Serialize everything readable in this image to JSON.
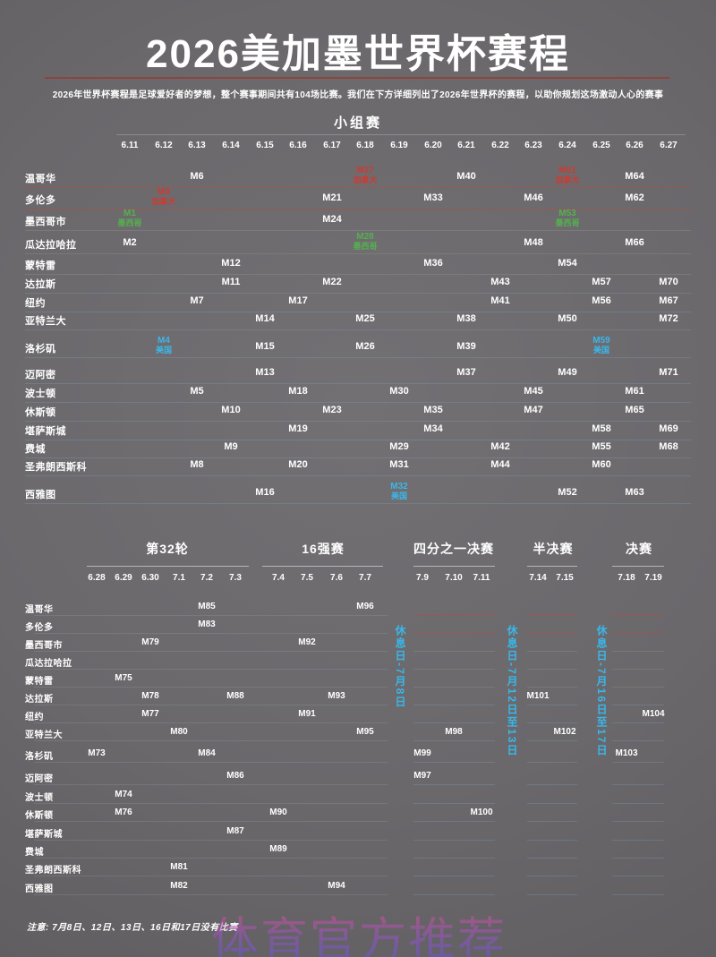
{
  "title": "2026美加墨世界杯赛程",
  "subtitle": "2026年世界杯赛程是足球爱好者的梦想，整个赛事期间共有104场比赛。我们在下方详细列出了2026年世界杯的赛程，以助你规划这场激动人心的赛事",
  "note": "注意: 7月8日、12日、13日、16日和17日没有比赛",
  "watermark": "体育官方推荐",
  "colors": {
    "canada": "#cf3a31",
    "mexico": "#55b04e",
    "usa": "#3ab7ea",
    "title_underline": "#8a453c",
    "rest_day_text": "#3ab7ea",
    "separator_CA": "rgba(195,70,58,0.45)",
    "separator_MX": "rgba(150,170,145,0.28)",
    "separator_US": "rgba(130,170,200,0.28)",
    "ko_left_line": "rgba(175,205,225,0.16)"
  },
  "group_stage": {
    "header": "小组赛",
    "dates": [
      "6.11",
      "6.12",
      "6.13",
      "6.14",
      "6.15",
      "6.16",
      "6.17",
      "6.18",
      "6.19",
      "6.20",
      "6.21",
      "6.22",
      "6.23",
      "6.24",
      "6.25",
      "6.26",
      "6.27"
    ],
    "rows": [
      {
        "city": "温哥华",
        "country": "CA",
        "matches": [
          {
            "m": "M6",
            "date": "6.13"
          },
          {
            "m": "M27",
            "sub": "加拿大",
            "c": "canada",
            "date": "6.18"
          },
          {
            "m": "M40",
            "date": "6.21"
          },
          {
            "m": "M51",
            "sub": "加拿大",
            "c": "canada",
            "date": "6.24"
          },
          {
            "m": "M64",
            "date": "6.26"
          }
        ]
      },
      {
        "city": "多伦多",
        "country": "CA",
        "matches": [
          {
            "m": "M3",
            "sub": "加拿大",
            "c": "canada",
            "date": "6.12"
          },
          {
            "m": "M21",
            "date": "6.17"
          },
          {
            "m": "M33",
            "date": "6.20"
          },
          {
            "m": "M46",
            "date": "6.23"
          },
          {
            "m": "M62",
            "date": "6.26"
          }
        ]
      },
      {
        "city": "墨西哥市",
        "country": "MX",
        "matches": [
          {
            "m": "M1",
            "sub": "墨西哥",
            "c": "mexico",
            "date": "6.11"
          },
          {
            "m": "M24",
            "date": "6.17"
          },
          {
            "m": "M53",
            "sub": "墨西哥",
            "c": "mexico",
            "date": "6.24"
          }
        ]
      },
      {
        "city": "瓜达拉哈拉",
        "country": "MX",
        "matches": [
          {
            "m": "M2",
            "date": "6.11"
          },
          {
            "m": "M28",
            "sub": "墨西哥",
            "c": "mexico",
            "date": "6.18"
          },
          {
            "m": "M48",
            "date": "6.23"
          },
          {
            "m": "M66",
            "date": "6.26"
          }
        ]
      },
      {
        "city": "蒙特雷",
        "country": "MX",
        "matches": [
          {
            "m": "M12",
            "date": "6.14"
          },
          {
            "m": "M36",
            "date": "6.20"
          },
          {
            "m": "M54",
            "date": "6.24"
          }
        ]
      },
      {
        "city": "达拉斯",
        "country": "US",
        "matches": [
          {
            "m": "M11",
            "date": "6.14"
          },
          {
            "m": "M22",
            "date": "6.17"
          },
          {
            "m": "M43",
            "date": "6.22"
          },
          {
            "m": "M57",
            "date": "6.25"
          },
          {
            "m": "M70",
            "date": "6.27"
          }
        ]
      },
      {
        "city": "纽约",
        "country": "US",
        "matches": [
          {
            "m": "M7",
            "date": "6.13"
          },
          {
            "m": "M17",
            "date": "6.16"
          },
          {
            "m": "M41",
            "date": "6.22"
          },
          {
            "m": "M56",
            "date": "6.25"
          },
          {
            "m": "M67",
            "date": "6.27"
          }
        ]
      },
      {
        "city": "亚特兰大",
        "country": "US",
        "matches": [
          {
            "m": "M14",
            "date": "6.15"
          },
          {
            "m": "M25",
            "date": "6.18"
          },
          {
            "m": "M38",
            "date": "6.21"
          },
          {
            "m": "M50",
            "date": "6.24"
          },
          {
            "m": "M72",
            "date": "6.27"
          }
        ]
      },
      {
        "city": "洛杉矶",
        "country": "US",
        "matches": [
          {
            "m": "M4",
            "sub": "美国",
            "c": "usa",
            "date": "6.12"
          },
          {
            "m": "M15",
            "date": "6.15"
          },
          {
            "m": "M26",
            "date": "6.18"
          },
          {
            "m": "M39",
            "date": "6.21"
          },
          {
            "m": "M59",
            "sub": "美国",
            "c": "usa",
            "date": "6.25"
          }
        ]
      },
      {
        "city": "迈阿密",
        "country": "US",
        "matches": [
          {
            "m": "M13",
            "date": "6.15"
          },
          {
            "m": "M37",
            "date": "6.21"
          },
          {
            "m": "M49",
            "date": "6.24"
          },
          {
            "m": "M71",
            "date": "6.27"
          }
        ]
      },
      {
        "city": "波士顿",
        "country": "US",
        "matches": [
          {
            "m": "M5",
            "date": "6.13"
          },
          {
            "m": "M18",
            "date": "6.16"
          },
          {
            "m": "M30",
            "date": "6.19"
          },
          {
            "m": "M45",
            "date": "6.23"
          },
          {
            "m": "M61",
            "date": "6.26"
          }
        ]
      },
      {
        "city": "休斯顿",
        "country": "US",
        "matches": [
          {
            "m": "M10",
            "date": "6.14"
          },
          {
            "m": "M23",
            "date": "6.17"
          },
          {
            "m": "M35",
            "date": "6.20"
          },
          {
            "m": "M47",
            "date": "6.23"
          },
          {
            "m": "M65",
            "date": "6.26"
          }
        ]
      },
      {
        "city": "堪萨斯城",
        "country": "US",
        "matches": [
          {
            "m": "M19",
            "date": "6.16"
          },
          {
            "m": "M34",
            "date": "6.20"
          },
          {
            "m": "M58",
            "date": "6.25"
          },
          {
            "m": "M69",
            "date": "6.27"
          }
        ]
      },
      {
        "city": "费城",
        "country": "US",
        "matches": [
          {
            "m": "M9",
            "date": "6.14"
          },
          {
            "m": "M29",
            "date": "6.19"
          },
          {
            "m": "M42",
            "date": "6.22"
          },
          {
            "m": "M55",
            "date": "6.25"
          },
          {
            "m": "M68",
            "date": "6.27"
          }
        ]
      },
      {
        "city": "圣弗朗西斯科",
        "country": "US",
        "matches": [
          {
            "m": "M8",
            "date": "6.13"
          },
          {
            "m": "M20",
            "date": "6.16"
          },
          {
            "m": "M31",
            "date": "6.19"
          },
          {
            "m": "M44",
            "date": "6.22"
          },
          {
            "m": "M60",
            "date": "6.25"
          }
        ]
      },
      {
        "city": "西雅图",
        "country": "US",
        "matches": [
          {
            "m": "M16",
            "date": "6.15"
          },
          {
            "m": "M32",
            "sub": "美国",
            "c": "usa",
            "date": "6.19"
          },
          {
            "m": "M52",
            "date": "6.24"
          },
          {
            "m": "M63",
            "date": "6.26"
          }
        ]
      }
    ]
  },
  "knockout": {
    "sections": [
      {
        "title": "第32轮",
        "dates": [
          "6.28",
          "6.29",
          "6.30",
          "7.1",
          "7.2",
          "7.3"
        ]
      },
      {
        "title": "16强赛",
        "dates": [
          "7.4",
          "7.5",
          "7.6",
          "7.7"
        ]
      },
      {
        "title": "四分之一决赛",
        "dates": [
          "7.9",
          "7.10",
          "7.11"
        ]
      },
      {
        "title": "半决赛",
        "dates": [
          "7.14",
          "7.15"
        ]
      },
      {
        "title": "决赛",
        "dates": [
          "7.18",
          "7.19"
        ]
      }
    ],
    "rest_days": [
      "休息日-7月8日",
      "休息日-7月12日至13日",
      "休息日-7月16日至17日"
    ],
    "rows": [
      {
        "city": "温哥华",
        "country": "CA",
        "matches": [
          {
            "m": "M85",
            "date": "7.2"
          },
          {
            "m": "M96",
            "date": "7.7"
          }
        ]
      },
      {
        "city": "多伦多",
        "country": "CA",
        "matches": [
          {
            "m": "M83",
            "date": "7.2"
          }
        ]
      },
      {
        "city": "墨西哥市",
        "country": "MX",
        "matches": [
          {
            "m": "M79",
            "date": "6.30"
          },
          {
            "m": "M92",
            "date": "7.5"
          }
        ]
      },
      {
        "city": "瓜达拉哈拉",
        "country": "MX",
        "matches": []
      },
      {
        "city": "蒙特雷",
        "country": "MX",
        "matches": [
          {
            "m": "M75",
            "date": "6.29"
          }
        ]
      },
      {
        "city": "达拉斯",
        "country": "US",
        "matches": [
          {
            "m": "M78",
            "date": "6.30"
          },
          {
            "m": "M88",
            "date": "7.3"
          },
          {
            "m": "M93",
            "date": "7.6"
          },
          {
            "m": "M101",
            "date": "7.14"
          }
        ]
      },
      {
        "city": "纽约",
        "country": "US",
        "matches": [
          {
            "m": "M77",
            "date": "6.30"
          },
          {
            "m": "M91",
            "date": "7.5"
          },
          {
            "m": "M104",
            "date": "7.19"
          }
        ]
      },
      {
        "city": "亚特兰大",
        "country": "US",
        "matches": [
          {
            "m": "M80",
            "date": "7.1"
          },
          {
            "m": "M95",
            "date": "7.7"
          },
          {
            "m": "M98",
            "date": "7.10"
          },
          {
            "m": "M102",
            "date": "7.15"
          }
        ]
      },
      {
        "city": "洛杉矶",
        "country": "US",
        "matches": [
          {
            "m": "M73",
            "date": "6.28"
          },
          {
            "m": "M84",
            "date": "7.2"
          },
          {
            "m": "M99",
            "date": "7.9"
          },
          {
            "m": "M103",
            "date": "7.18"
          }
        ]
      },
      {
        "city": "迈阿密",
        "country": "US",
        "matches": [
          {
            "m": "M86",
            "date": "7.3"
          },
          {
            "m": "M97",
            "date": "7.9"
          }
        ]
      },
      {
        "city": "波士顿",
        "country": "US",
        "matches": [
          {
            "m": "M74",
            "date": "6.29"
          }
        ]
      },
      {
        "city": "休斯顿",
        "country": "US",
        "matches": [
          {
            "m": "M76",
            "date": "6.29"
          },
          {
            "m": "M90",
            "date": "7.4"
          },
          {
            "m": "M100",
            "date": "7.11"
          }
        ]
      },
      {
        "city": "堪萨斯城",
        "country": "US",
        "matches": [
          {
            "m": "M87",
            "date": "7.3"
          }
        ]
      },
      {
        "city": "费城",
        "country": "US",
        "matches": [
          {
            "m": "M89",
            "date": "7.4"
          }
        ]
      },
      {
        "city": "圣弗朗西斯科",
        "country": "US",
        "matches": [
          {
            "m": "M81",
            "date": "7.1"
          }
        ]
      },
      {
        "city": "西雅图",
        "country": "US",
        "matches": [
          {
            "m": "M82",
            "date": "7.1"
          },
          {
            "m": "M94",
            "date": "7.6"
          }
        ]
      }
    ]
  },
  "chart_data": {
    "type": "table",
    "title": "2026美加墨世界杯赛程",
    "stages": [
      "小组赛",
      "第32轮",
      "16强赛",
      "四分之一决赛",
      "半决赛",
      "决赛"
    ],
    "group_stage_dates": [
      "6.11",
      "6.27"
    ],
    "knockout_dates": [
      "6.28",
      "7.19"
    ],
    "total_matches": 104,
    "host_openers": [
      {
        "match": "M1",
        "team": "墨西哥",
        "city": "墨西哥市",
        "date": "6.11"
      },
      {
        "match": "M3",
        "team": "加拿大",
        "city": "多伦多",
        "date": "6.12"
      },
      {
        "match": "M4",
        "team": "美国",
        "city": "洛杉矶",
        "date": "6.12"
      }
    ],
    "final": {
      "match": "M104",
      "city": "纽约",
      "date": "7.19"
    }
  }
}
